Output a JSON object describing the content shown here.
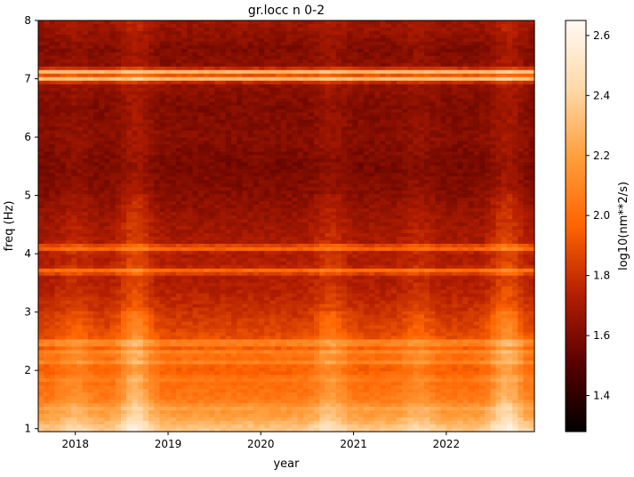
{
  "chart_data": {
    "type": "heatmap",
    "title": "gr.locc n 0-2",
    "xlabel": "year",
    "ylabel": "freq (Hz)",
    "colorbar_label": "log10(nm**2/s)",
    "colormap": "gist_heat",
    "colormap_stops": [
      "#000000",
      "#5a0000",
      "#b41e00",
      "#ff6400",
      "#ff9e3c",
      "#ffd9a8",
      "#fff9f4"
    ],
    "x_range": [
      2017.6,
      2022.95
    ],
    "xticks": [
      2018,
      2019,
      2020,
      2021,
      2022
    ],
    "xtick_labels": [
      "2018",
      "2019",
      "2020",
      "2021",
      "2022"
    ],
    "y_range": [
      0.95,
      8.0
    ],
    "yticks": [
      1,
      2,
      3,
      4,
      5,
      6,
      7,
      8
    ],
    "ytick_labels": [
      "1",
      "2",
      "3",
      "4",
      "5",
      "6",
      "7",
      "8"
    ],
    "color_range": [
      1.28,
      2.65
    ],
    "cticks": [
      1.4,
      1.6,
      1.8,
      2.0,
      2.2,
      2.4,
      2.6
    ],
    "ctick_labels": [
      "1.4",
      "1.6",
      "1.8",
      "2.0",
      "2.2",
      "2.4",
      "2.6"
    ],
    "background_spectrum": {
      "freq_hz": [
        1.0,
        1.2,
        1.5,
        2.0,
        2.5,
        3.0,
        3.5,
        4.0,
        4.5,
        5.0,
        5.5,
        6.0,
        6.5,
        7.0,
        7.5,
        8.0
      ],
      "level": [
        2.35,
        2.2,
        2.05,
        1.95,
        1.9,
        1.8,
        1.72,
        1.72,
        1.68,
        1.62,
        1.58,
        1.62,
        1.6,
        1.65,
        1.6,
        1.68
      ]
    },
    "spectral_lines": [
      {
        "freq_hz": 7.0,
        "level": 2.3
      },
      {
        "freq_hz": 7.12,
        "level": 2.3
      },
      {
        "freq_hz": 4.1,
        "level": 2.0
      },
      {
        "freq_hz": 3.7,
        "level": 2.0
      },
      {
        "freq_hz": 2.47,
        "level": 2.15
      },
      {
        "freq_hz": 2.3,
        "level": 2.1
      },
      {
        "freq_hz": 2.15,
        "level": 2.1
      },
      {
        "freq_hz": 1.85,
        "level": 2.05
      },
      {
        "freq_hz": 1.35,
        "level": 2.2
      }
    ],
    "seasonal_brightening": [
      {
        "year": 2018.0,
        "strength": 0.1
      },
      {
        "year": 2018.65,
        "strength": 0.25
      },
      {
        "year": 2020.75,
        "strength": 0.15
      },
      {
        "year": 2021.7,
        "strength": 0.1
      },
      {
        "year": 2022.65,
        "strength": 0.25
      }
    ]
  }
}
